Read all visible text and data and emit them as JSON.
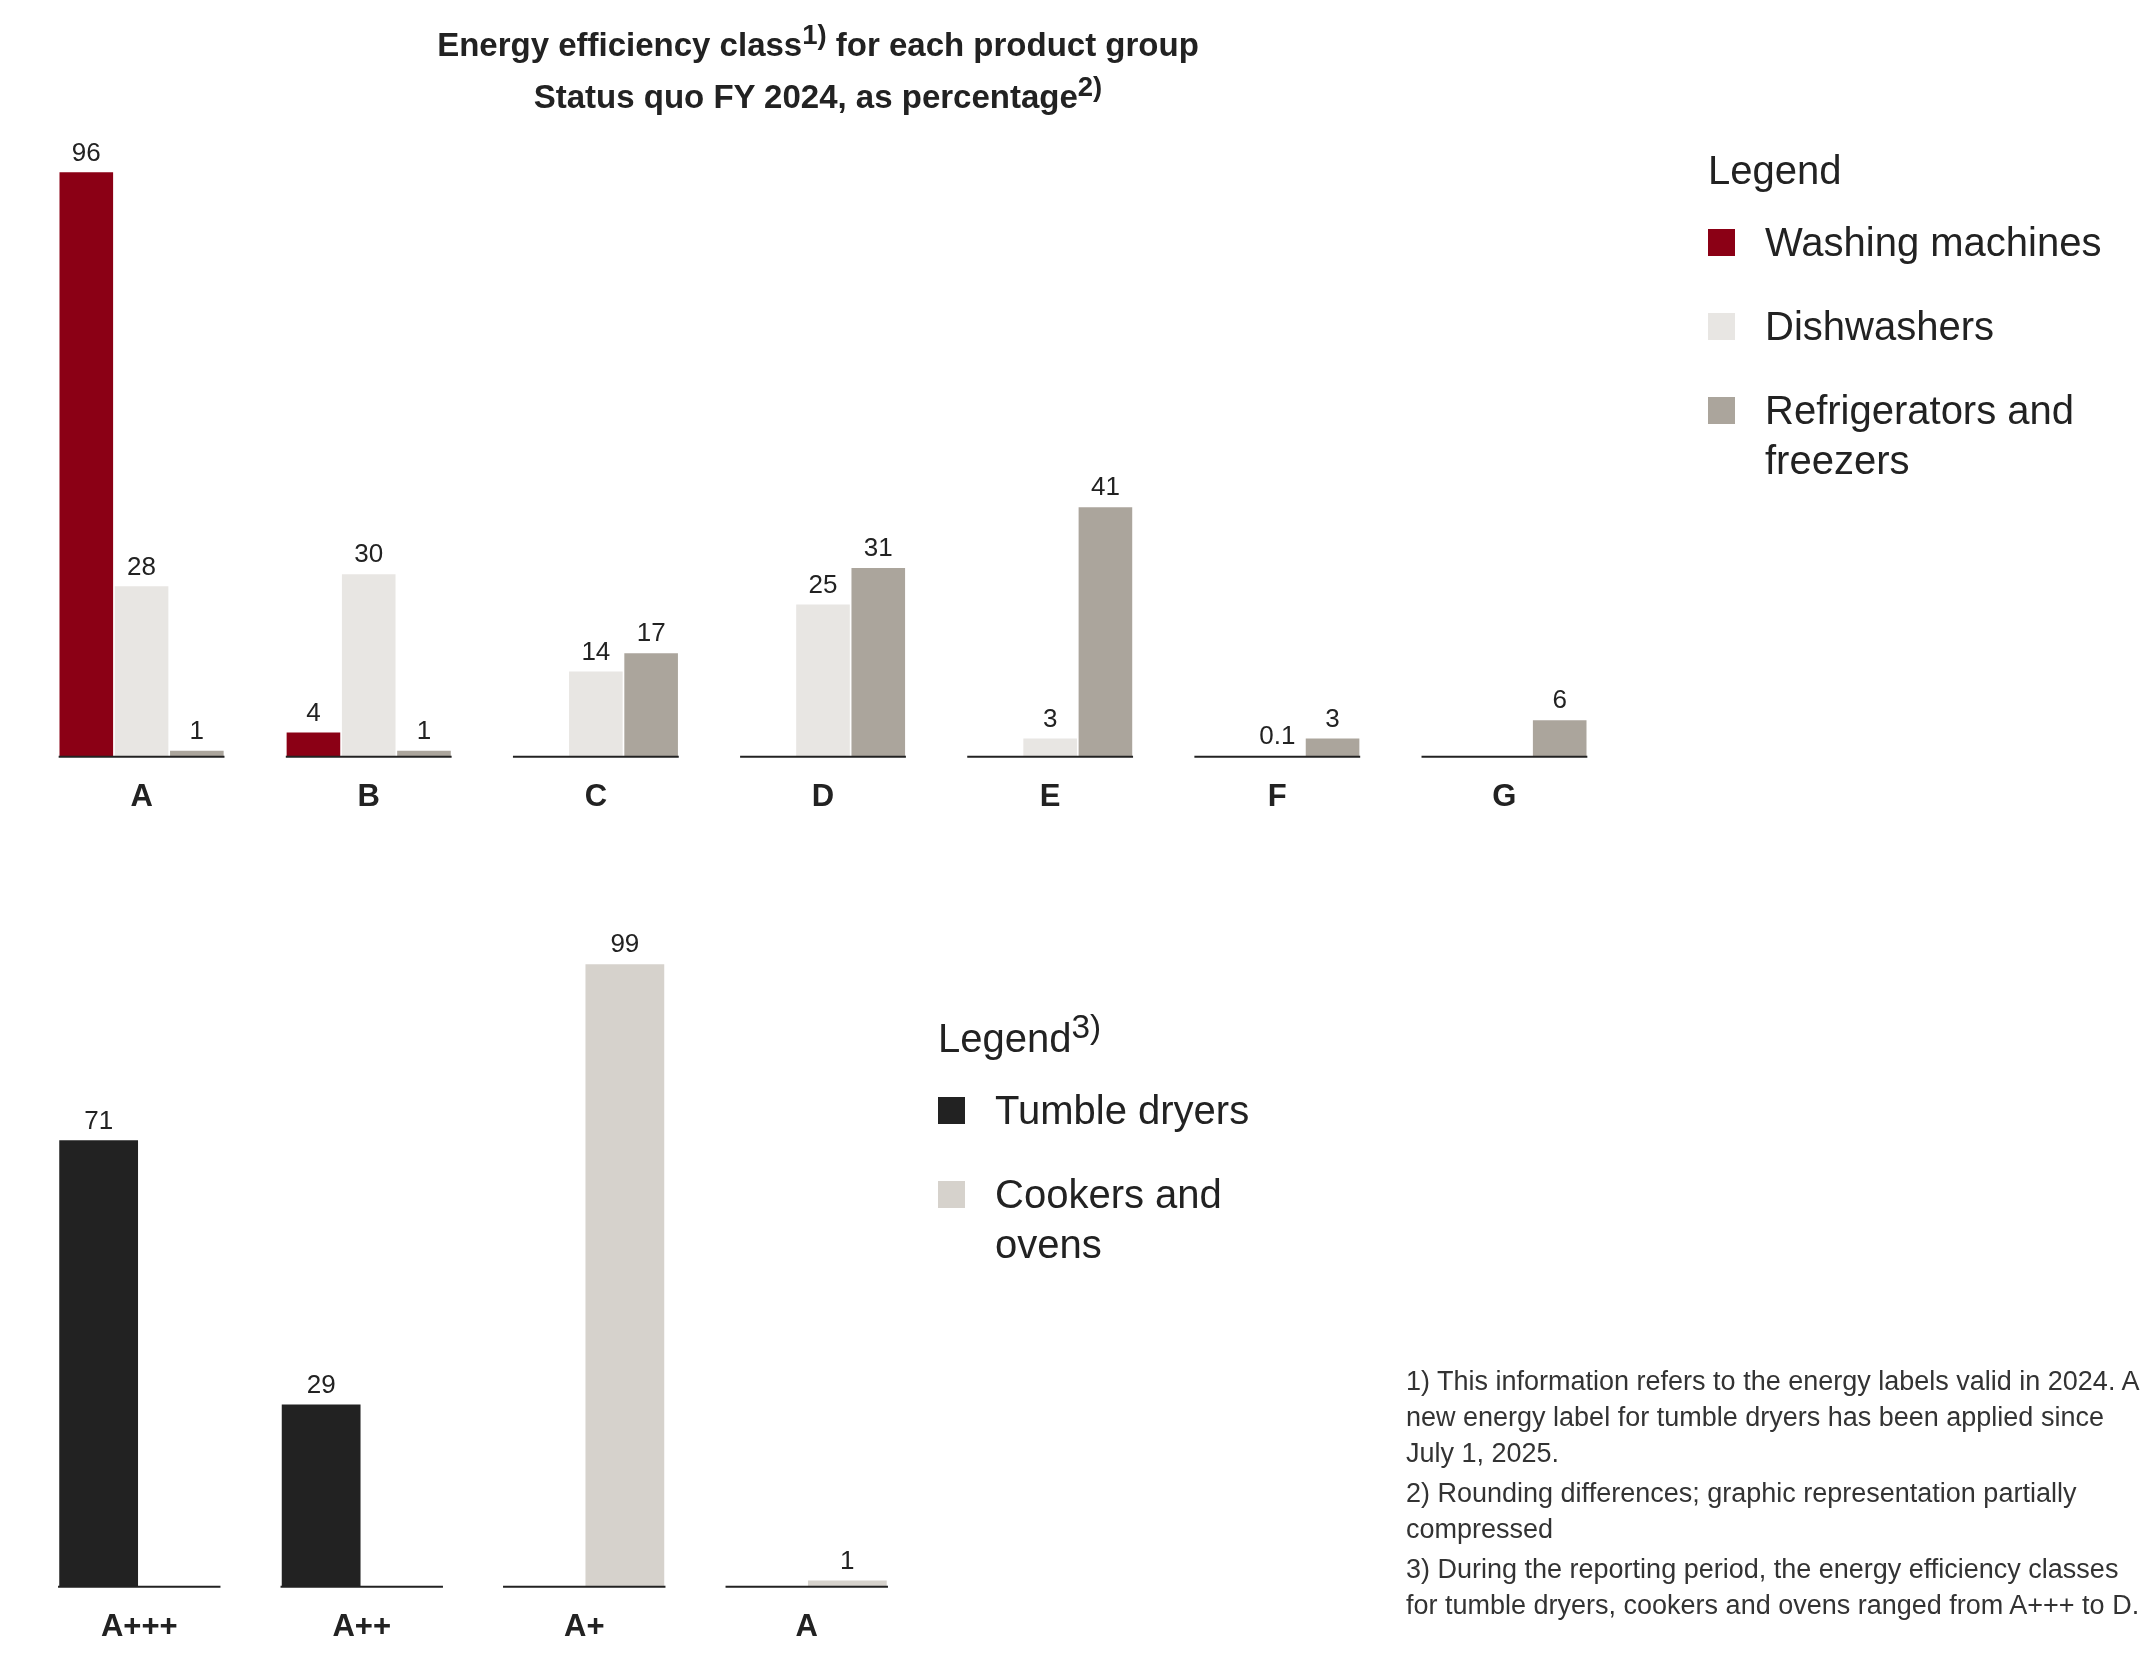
{
  "chart_data": [
    {
      "type": "bar",
      "title": "Energy efficiency class$^{1)}$ for each product group",
      "subtitle": "Status quo FY 2024, as percentage$^{2)}$",
      "legend_title": "Legend",
      "categories": [
        "A",
        "B",
        "C",
        "D",
        "E",
        "F",
        "G"
      ],
      "series": [
        {
          "name": "Washing machines",
          "color": "#8b0015",
          "values": [
            96,
            4,
            null,
            null,
            null,
            null,
            null
          ]
        },
        {
          "name": "Dishwashers",
          "color": "#e8e6e3",
          "values": [
            28,
            30,
            14,
            25,
            3,
            0.1,
            null
          ]
        },
        {
          "name": "Refrigerators and freezers",
          "color": "#aba59c",
          "values": [
            1,
            1,
            17,
            31,
            41,
            3,
            6
          ]
        }
      ],
      "data_labels": true,
      "legend": "right",
      "grid": false,
      "tick_labels": "x"
    },
    {
      "type": "bar",
      "legend_title": "Legend$^{3)}$",
      "categories": [
        "A+++",
        "A++",
        "A+",
        "A"
      ],
      "series": [
        {
          "name": "Tumble dryers",
          "color": "#222222",
          "values": [
            71,
            29,
            null,
            null
          ]
        },
        {
          "name": "Cookers and ovens",
          "color": "#d6d2cc",
          "values": [
            null,
            null,
            99,
            1
          ]
        }
      ],
      "data_labels": true,
      "legend": "right",
      "grid": false,
      "tick_labels": "x",
      "annotations": [
        "1) This information refers to the energy labels valid in 2024. A new energy label for tumble dryers has been applied since July 1, 2025.",
        "2) Rounding differences; graphic representation partially compressed",
        "3) During the reporting period, the energy efficiency classes for tumble dryers, cookers and ovens ranged from A+++ to D."
      ]
    }
  ]
}
